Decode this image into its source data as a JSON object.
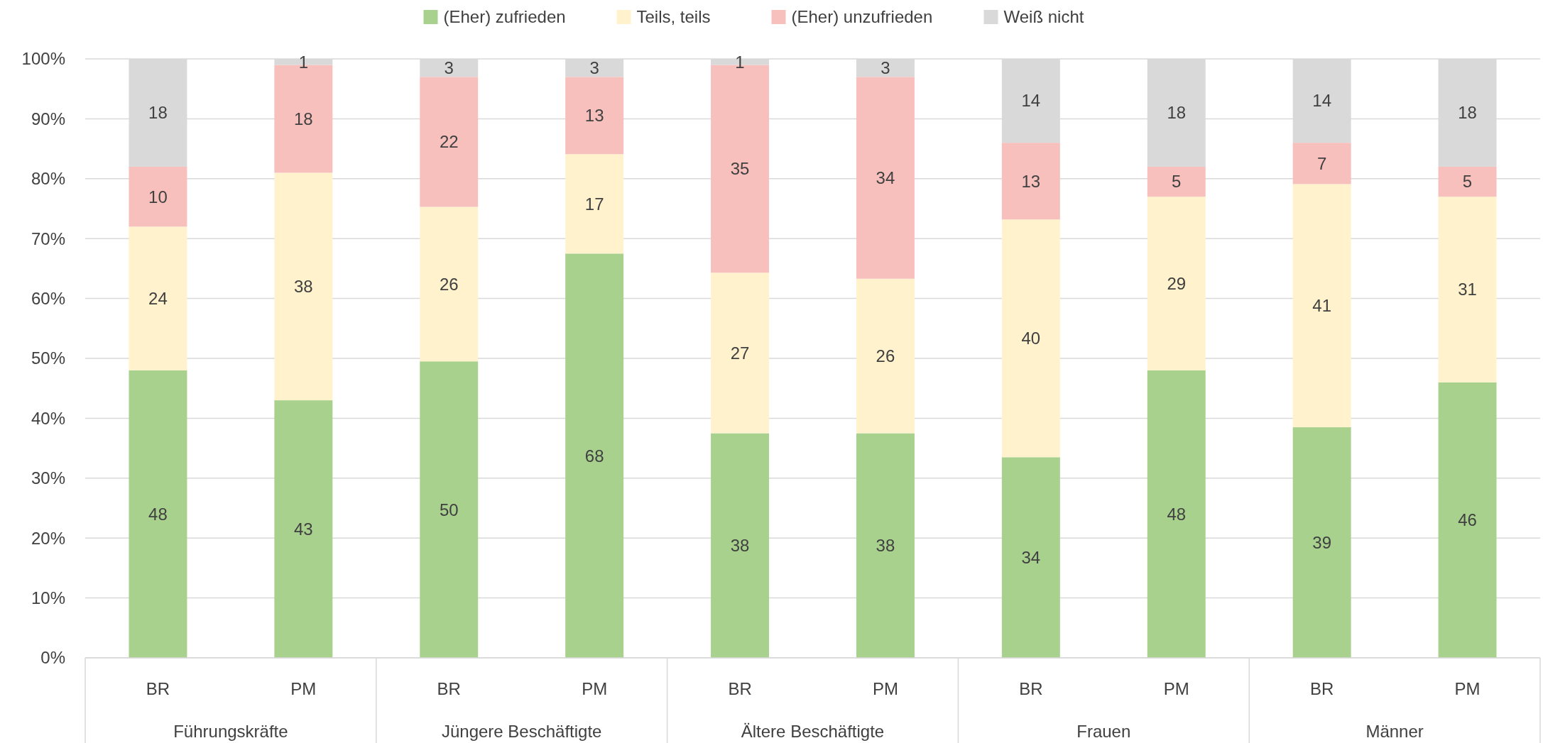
{
  "chart_data": {
    "type": "bar",
    "stacked": true,
    "categories": [
      "BR",
      "PM",
      "BR",
      "PM",
      "BR",
      "PM",
      "BR",
      "PM",
      "BR",
      "PM"
    ],
    "annotations": [
      "Führungskräfte",
      "Jüngere Beschäftigte",
      "Ältere Beschäftigte",
      "Frauen",
      "Männer"
    ],
    "series": [
      {
        "name": "(Eher) zufrieden",
        "color": "#a9d18e",
        "values": [
          48,
          43,
          49.5,
          67.5,
          37.5,
          37.5,
          33.5,
          48,
          38.5,
          46
        ],
        "value_labels": [
          "48",
          "43",
          "50",
          "68",
          "38",
          "38",
          "34",
          "48",
          "39",
          "46"
        ]
      },
      {
        "name": "Teils, teils",
        "color": "#fff2cc",
        "values": [
          24,
          38,
          25.8,
          16.6,
          26.8,
          25.8,
          39.7,
          29,
          40.6,
          31
        ],
        "value_labels": [
          "24",
          "38",
          "26",
          "17",
          "27",
          "26",
          "40",
          "29",
          "41",
          "31"
        ]
      },
      {
        "name": "(Eher) unzufrieden",
        "color": "#f8c0bd",
        "values": [
          10,
          18,
          21.7,
          12.9,
          34.7,
          33.7,
          12.8,
          5,
          6.9,
          5
        ],
        "value_labels": [
          "10",
          "18",
          "22",
          "13",
          "35",
          "34",
          "13",
          "5",
          "7",
          "5"
        ]
      },
      {
        "name": "Weiß nicht",
        "color": "#d9d9d9",
        "values": [
          18,
          1,
          3,
          3,
          1,
          3,
          14,
          18,
          14,
          18
        ],
        "value_labels": [
          "18",
          "1",
          "3",
          "3",
          "1",
          "3",
          "14",
          "18",
          "14",
          "18"
        ]
      }
    ],
    "ylim": [
      0,
      100
    ],
    "yticks": [
      {
        "value": 0,
        "label": "0%"
      },
      {
        "value": 10,
        "label": "10%"
      },
      {
        "value": 20,
        "label": "20%"
      },
      {
        "value": 30,
        "label": "30%"
      },
      {
        "value": 40,
        "label": "40%"
      },
      {
        "value": 50,
        "label": "50%"
      },
      {
        "value": 60,
        "label": "60%"
      },
      {
        "value": 70,
        "label": "70%"
      },
      {
        "value": 80,
        "label": "80%"
      },
      {
        "value": 90,
        "label": "90%"
      },
      {
        "value": 100,
        "label": "100%"
      }
    ],
    "grid": "y",
    "legend": "top"
  }
}
